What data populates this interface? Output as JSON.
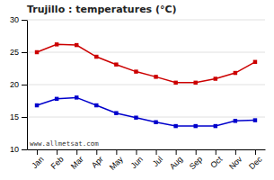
{
  "chart_data": {
    "type": "line",
    "title": "Trujillo : temperatures (°C)",
    "categories": [
      "Jan",
      "Feb",
      "Mar",
      "Apr",
      "May",
      "Jun",
      "Jul",
      "Aug",
      "Sep",
      "Oct",
      "Nov",
      "Dec"
    ],
    "series": [
      {
        "color": "#cc0000",
        "marker": "square",
        "values": [
          25.0,
          26.2,
          26.1,
          24.3,
          23.1,
          22.0,
          21.2,
          20.3,
          20.3,
          20.9,
          21.8,
          23.5
        ]
      },
      {
        "color": "#0000cc",
        "marker": "square",
        "values": [
          16.8,
          17.8,
          18.0,
          16.8,
          15.6,
          14.9,
          14.2,
          13.6,
          13.6,
          13.6,
          14.4,
          14.5
        ]
      }
    ],
    "ylim": [
      10,
      30
    ],
    "yticks": [
      10,
      15,
      20,
      25,
      30
    ],
    "grid": true,
    "annotations": [
      "www.allmetsat.com"
    ]
  }
}
